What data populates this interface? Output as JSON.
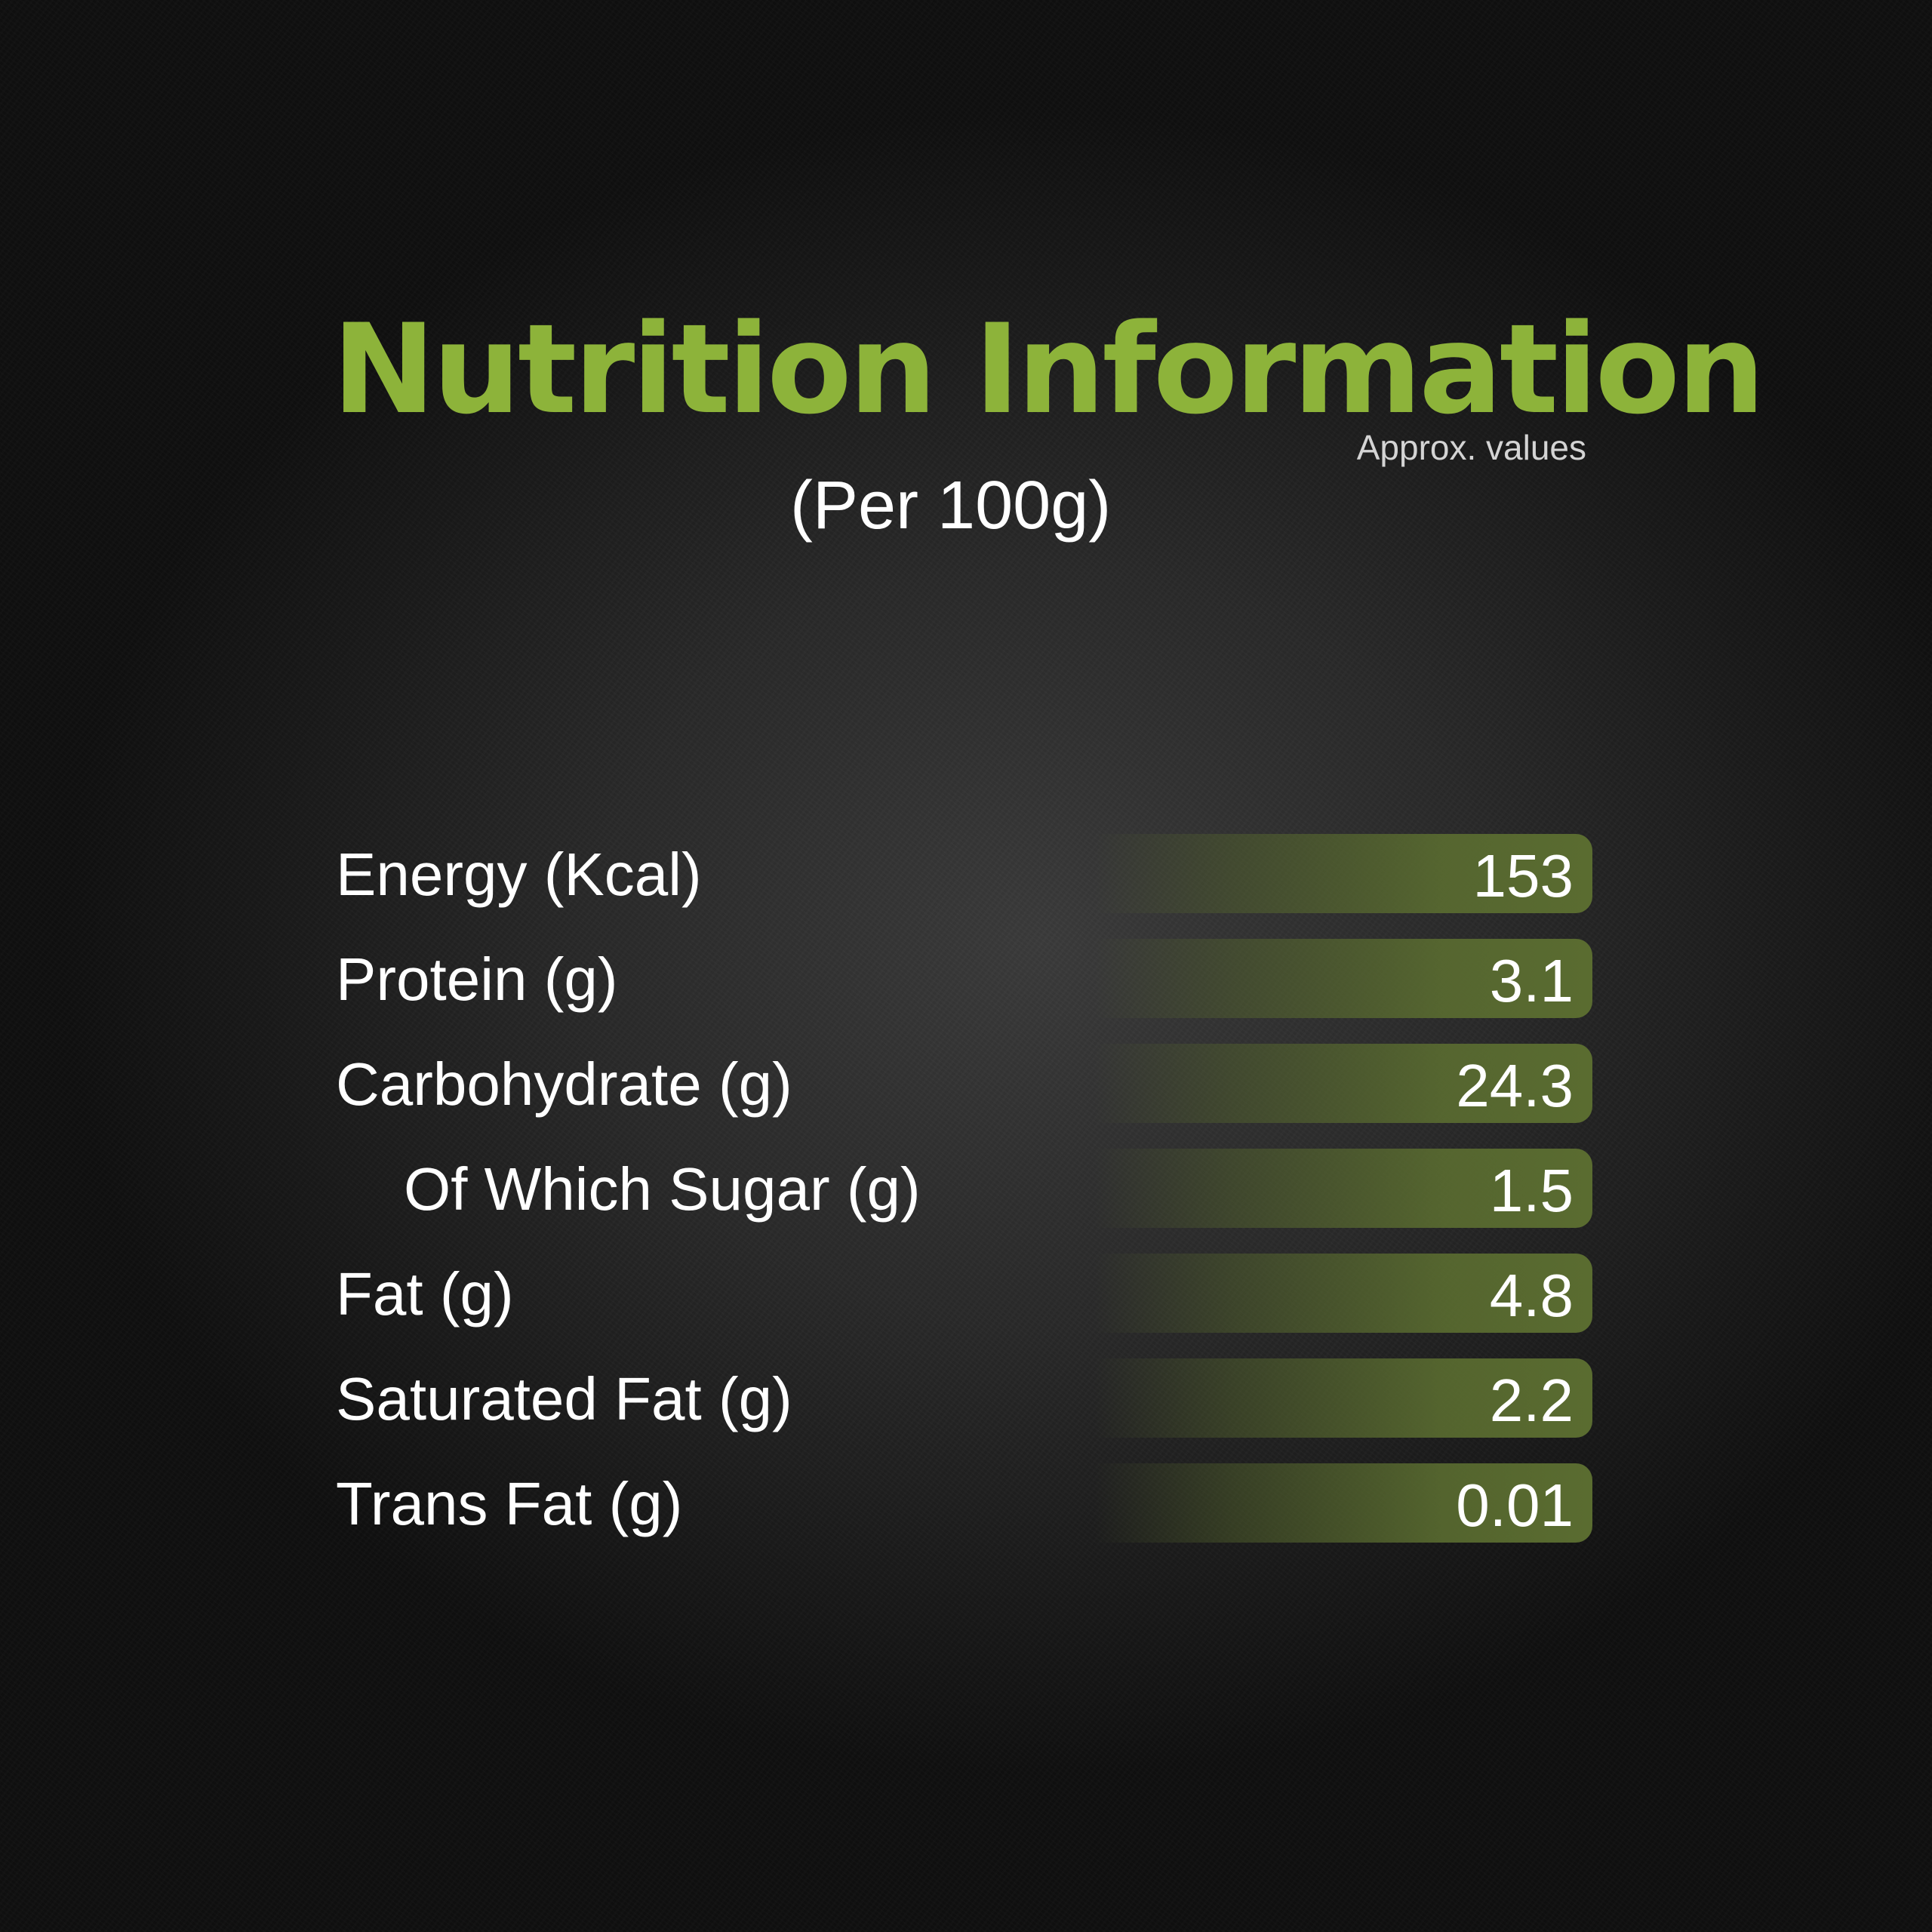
{
  "header": {
    "title": "Nutrition Information",
    "approx_note": "Approx. values",
    "serving": "(Per 100g)"
  },
  "colors": {
    "title_green": "#8db33a",
    "bar_green": "#5a6c30",
    "text_white": "#ffffff"
  },
  "nutrition": {
    "rows": [
      {
        "label": "Energy (Kcal)",
        "value": "153"
      },
      {
        "label": "Protein (g)",
        "value": "3.1"
      },
      {
        "label": "Carbohydrate (g)",
        "value": "24.3"
      },
      {
        "label": "Of Which Sugar (g)",
        "value": "1.5"
      },
      {
        "label": "Fat (g)",
        "value": "4.8"
      },
      {
        "label": "Saturated Fat (g)",
        "value": "2.2"
      },
      {
        "label": "Trans Fat (g)",
        "value": "0.01"
      }
    ]
  }
}
